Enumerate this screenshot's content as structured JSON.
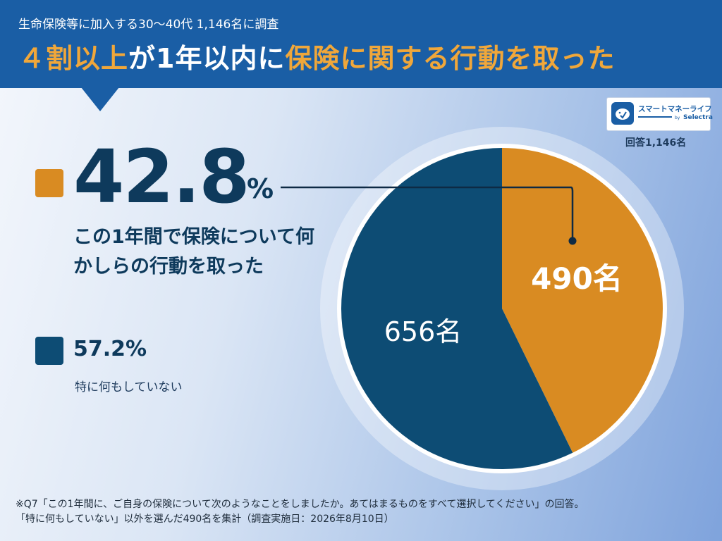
{
  "header": {
    "subtitle": "生命保険等に加入する30〜40代 1,146名に調査",
    "title_part1": "４割以上",
    "title_part2": "が1年以内に",
    "title_part3": "保険に関する行動を取った"
  },
  "logo": {
    "text": "スマートマネーライフ",
    "by": "by",
    "brand": "Selectra"
  },
  "respondents_label": "回答1,146名",
  "legend": {
    "action": {
      "percent": "42.8",
      "percent_sign": "%",
      "label": "この1年間で保険について何かしらの行動を取った"
    },
    "none": {
      "percent": "57.2%",
      "label": "特に何もしていない"
    }
  },
  "chart_data": {
    "type": "pie",
    "slices": [
      {
        "label": "この1年間で保険について何かしらの行動を取った",
        "value": 490,
        "percent": 42.8,
        "display": "490名",
        "color": "#d98b22"
      },
      {
        "label": "特に何もしていない",
        "value": 656,
        "percent": 57.2,
        "display": "656名",
        "color": "#0d4c74"
      }
    ],
    "total": 1146
  },
  "footnote": {
    "line1": "※Q7「この1年間に、ご自身の保険について次のようなことをしましたか。あてはまるものをすべて選択してください」の回答。",
    "line2": "「特に何もしていない」以外を選んだ490名を集計（調査実施日：2026年8月10日）"
  }
}
